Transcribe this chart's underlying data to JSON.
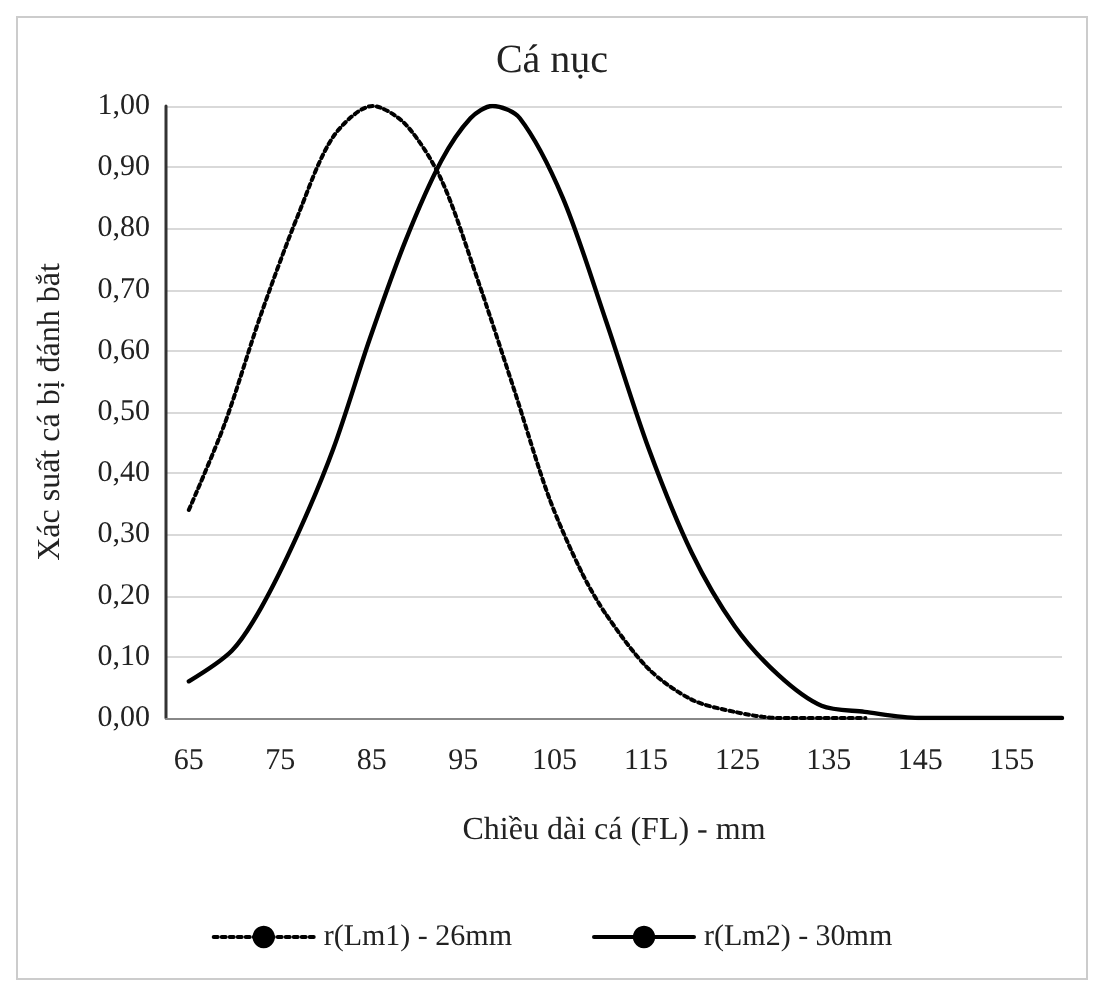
{
  "chart_data": {
    "type": "line",
    "title": "Cá nục",
    "xlabel": "Chiều dài cá (FL) - mm",
    "ylabel": "Xác suất cá bị đánh bắt",
    "xlim": [
      62.5,
      160.5
    ],
    "xticks": [
      65,
      75,
      85,
      95,
      105,
      115,
      125,
      135,
      145,
      155
    ],
    "ylim": [
      0,
      1
    ],
    "yticks": [
      {
        "value": 0,
        "label": "0,00"
      },
      {
        "value": 0.1,
        "label": "0,10"
      },
      {
        "value": 0.2,
        "label": "0,20"
      },
      {
        "value": 0.3,
        "label": "0,30"
      },
      {
        "value": 0.4,
        "label": "0,40"
      },
      {
        "value": 0.5,
        "label": "0,50"
      },
      {
        "value": 0.6,
        "label": "0,60"
      },
      {
        "value": 0.7,
        "label": "0,70"
      },
      {
        "value": 0.8,
        "label": "0,80"
      },
      {
        "value": 0.9,
        "label": "0,90"
      },
      {
        "value": 1,
        "label": "1,00"
      }
    ],
    "grid": "y",
    "legend": "bottom",
    "marker": "none",
    "series": [
      {
        "name": "r(Lm1) - 26mm",
        "color": "#000000",
        "line_style": "dotted",
        "x": [
          65,
          68.9,
          72.9,
          76.9,
          80.8,
          85.1,
          88.7,
          92.6,
          96.5,
          100.5,
          104.4,
          107.9,
          110.6,
          115.3,
          120,
          124.7,
          129.5,
          134.2,
          139
        ],
        "values": [
          0.34,
          0.48,
          0.66,
          0.82,
          0.95,
          1,
          0.97,
          0.88,
          0.72,
          0.54,
          0.36,
          0.24,
          0.17,
          0.08,
          0.03,
          0.01,
          0,
          0,
          0
        ]
      },
      {
        "name": "r(Lm2) - 30mm",
        "color": "#000000",
        "line_style": "solid",
        "x": [
          65,
          69.7,
          72.9,
          76.9,
          80.8,
          84.8,
          88.7,
          92.6,
          95.8,
          98.2,
          101.2,
          105.9,
          110.6,
          115.3,
          120,
          124.7,
          129.5,
          134.2,
          138.9,
          144.8,
          160.5
        ],
        "values": [
          0.06,
          0.11,
          0.18,
          0.3,
          0.44,
          0.62,
          0.78,
          0.91,
          0.98,
          1,
          0.98,
          0.85,
          0.65,
          0.44,
          0.27,
          0.15,
          0.07,
          0.02,
          0.01,
          0,
          0
        ]
      }
    ]
  }
}
